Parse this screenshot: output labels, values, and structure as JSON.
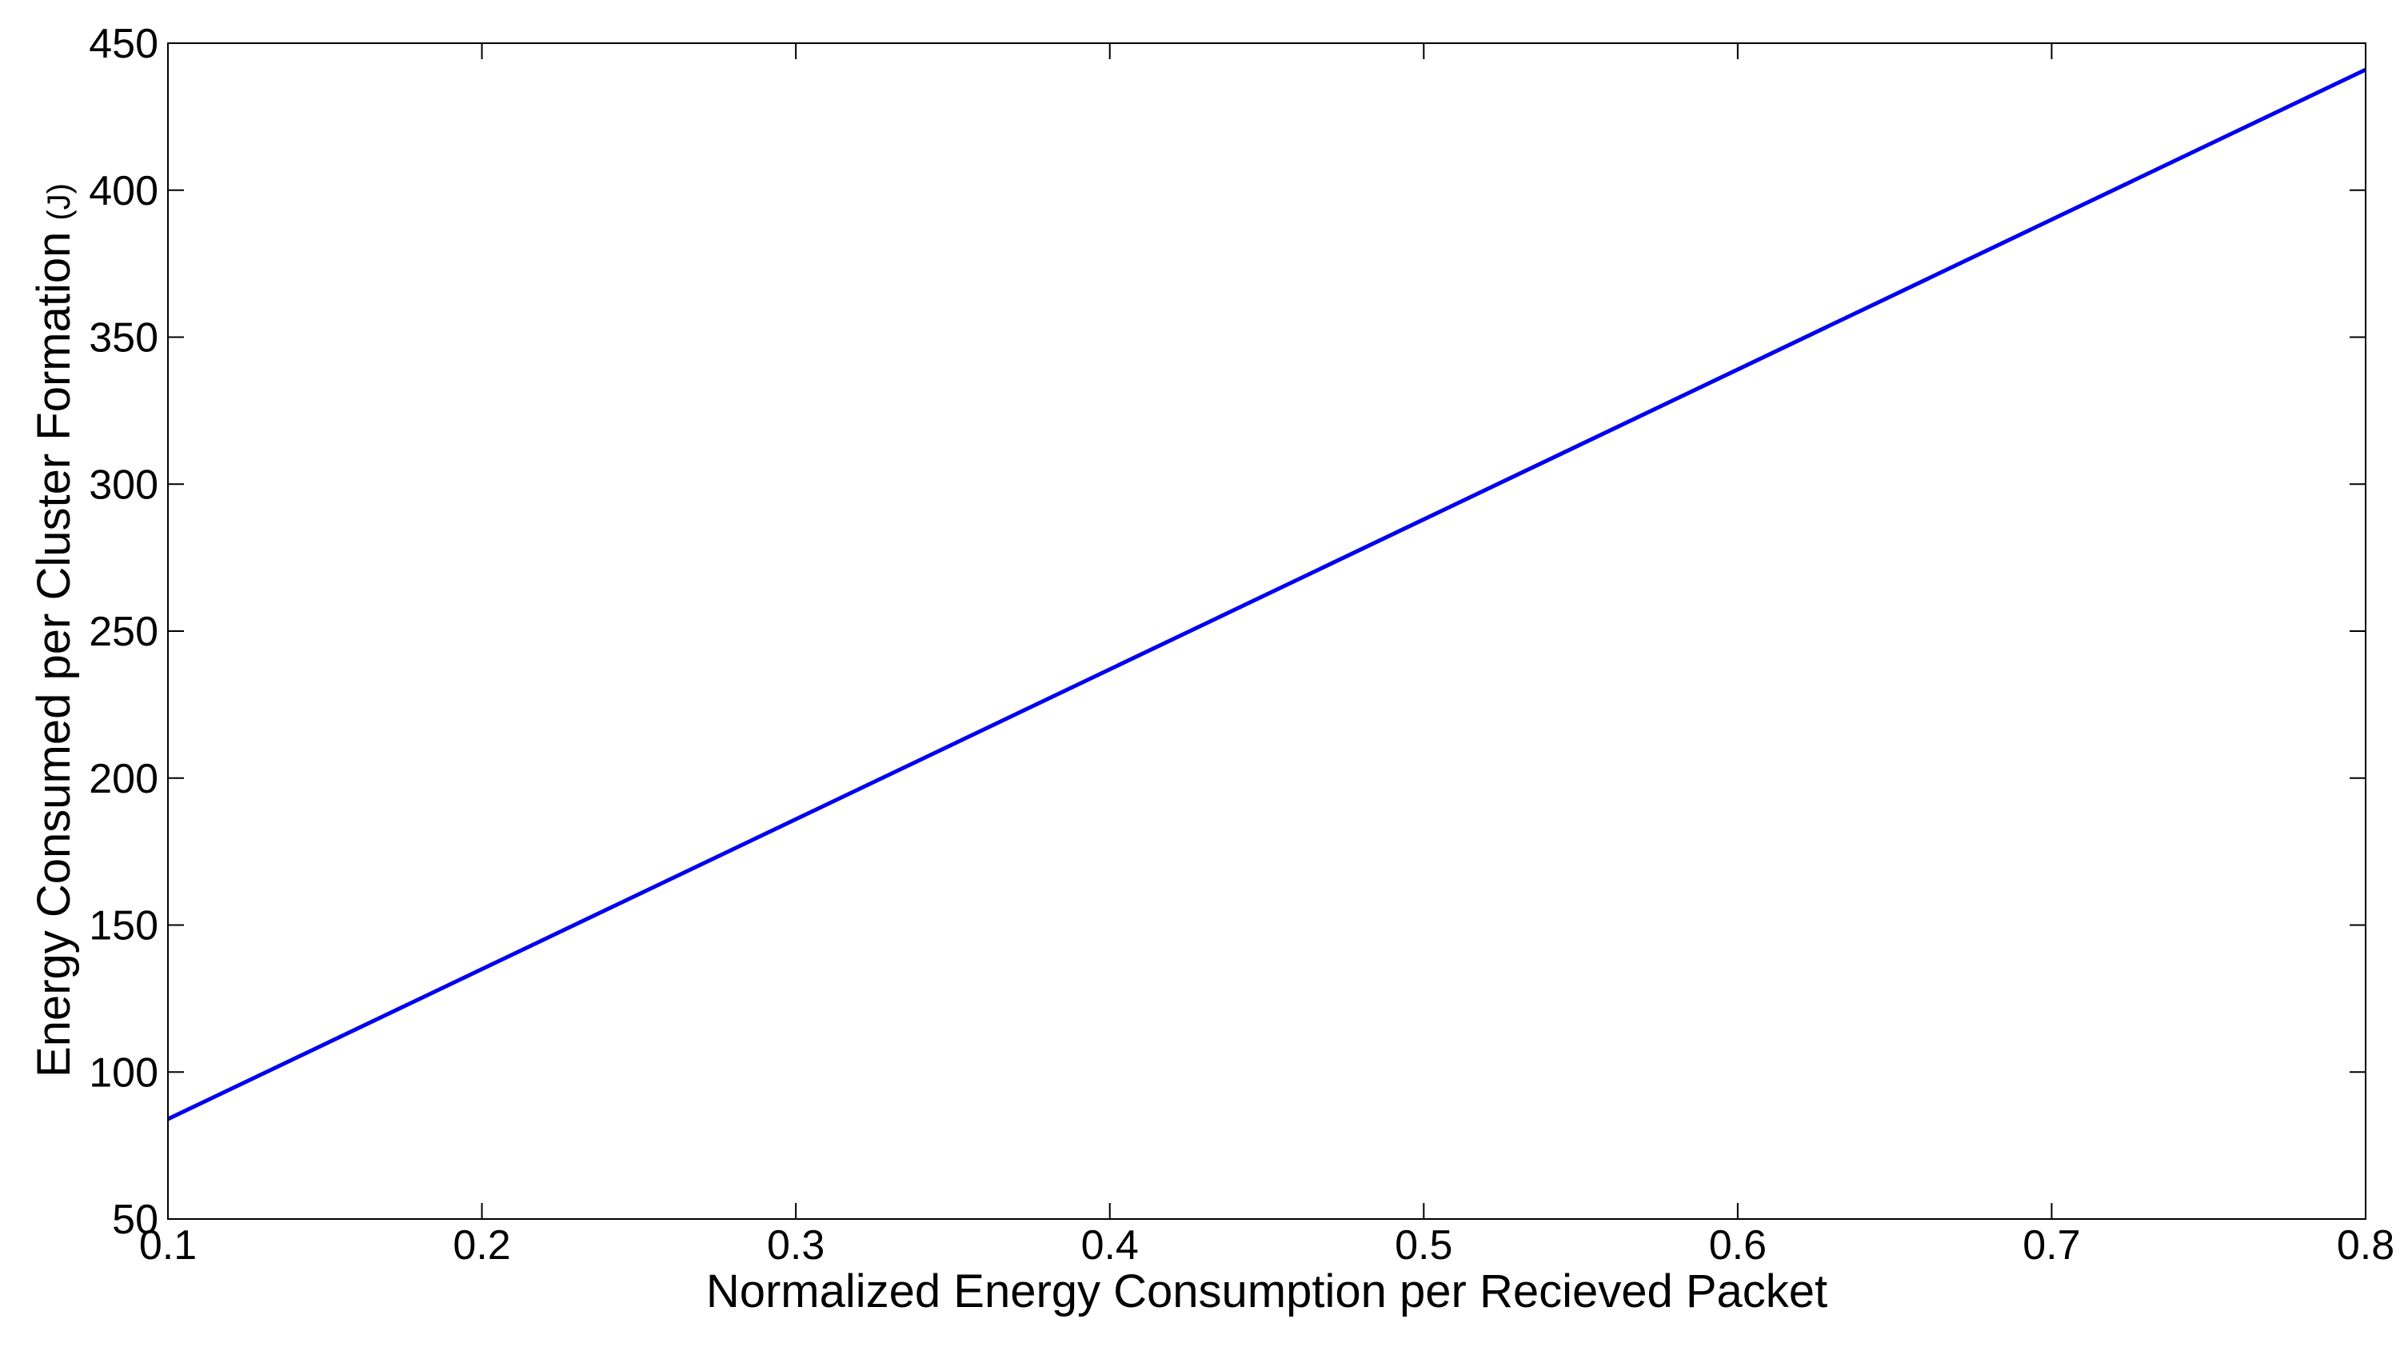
{
  "chart_data": {
    "type": "line",
    "title": "",
    "xlabel": "Normalized Energy Consumption per Recieved Packet",
    "ylabel": "Energy Consumed per Cluster Formation",
    "ylabel_unit": "(J)",
    "xlim": [
      0.1,
      0.8
    ],
    "ylim": [
      50,
      450
    ],
    "x_ticks": [
      0.1,
      0.2,
      0.3,
      0.4,
      0.5,
      0.6,
      0.7,
      0.8
    ],
    "x_tick_labels": [
      "0.1",
      "0.2",
      "0.3",
      "0.4",
      "0.5",
      "0.6",
      "0.7",
      "0.8"
    ],
    "y_ticks": [
      50,
      100,
      150,
      200,
      250,
      300,
      350,
      400,
      450
    ],
    "y_tick_labels": [
      "50",
      "100",
      "150",
      "200",
      "250",
      "300",
      "350",
      "400",
      "450"
    ],
    "grid": false,
    "legend": "none",
    "series": [
      {
        "color": "#0000ee",
        "x": [
          0.1,
          0.8
        ],
        "y": [
          84,
          441
        ]
      }
    ]
  }
}
